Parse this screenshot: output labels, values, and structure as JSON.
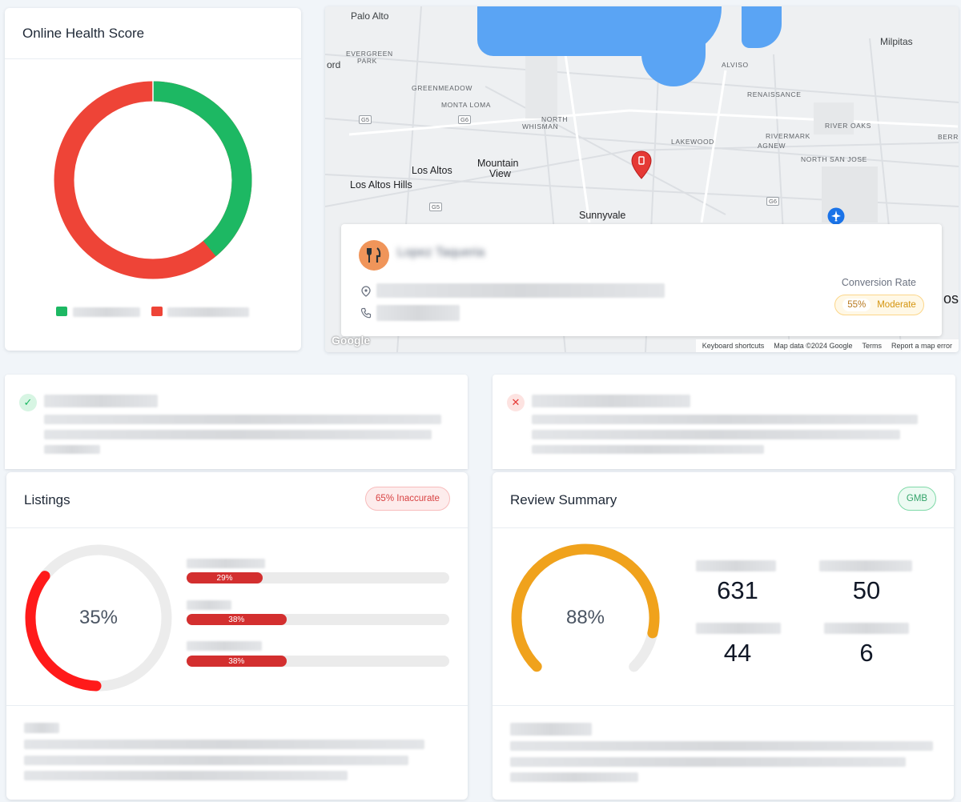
{
  "health_card": {
    "title": "Online Health Score",
    "donut": {
      "positive_fraction": 0.39,
      "positive_color": "#1db863",
      "negative_color": "#ee4437"
    }
  },
  "map": {
    "labels": {
      "palo_alto": "Palo Alto",
      "milpitas": "Milpitas",
      "ord": "ord",
      "evergreen": "EVERGREEN",
      "park": "PARK",
      "alviso": "ALVISO",
      "greenmeadow": "GREENMEADOW",
      "renaissance": "RENAISSANCE",
      "monta_loma": "MONTA LOMA",
      "north": "NORTH",
      "whisman": "WHISMAN",
      "river_oaks": "RIVER OAKS",
      "rivermark": "RIVERMARK",
      "agnew": "AGNEW",
      "berry": "BERRY",
      "lakewood": "LAKEWOOD",
      "mountain": "Mountain",
      "view": "View",
      "los_altos": "Los Altos",
      "north_san_jose": "NORTH SAN JOSE",
      "los_altos_hills": "Los Altos Hills",
      "sunnyvale": "Sunnyvale",
      "os": "os"
    },
    "roads": {
      "g5": "G5",
      "g6": "G6"
    },
    "footer": {
      "shortcuts": "Keyboard shortcuts",
      "map_data": "Map data ©2024 Google",
      "terms": "Terms",
      "report": "Report a map error"
    },
    "google_logo": "Google",
    "business": {
      "name": "Lopez Taqueria",
      "conversion_label": "Conversion Rate",
      "conversion_pct": "55%",
      "conversion_status": "Moderate"
    }
  },
  "listings": {
    "title": "Listings",
    "badge": "65% Inaccurate",
    "ring_label": "35%",
    "ring_value": 0.35,
    "bars": [
      {
        "value": 0.29,
        "label": "29%"
      },
      {
        "value": 0.38,
        "label": "38%"
      },
      {
        "value": 0.38,
        "label": "38%"
      }
    ]
  },
  "reviews": {
    "title": "Review Summary",
    "badge": "GMB",
    "gauge_label": "88%",
    "gauge_value": 0.88,
    "stats": [
      "631",
      "50",
      "44",
      "6"
    ]
  },
  "colors": {
    "green": "#1db863",
    "red": "#ee4437",
    "listing_red": "#ff1a1a",
    "gauge_orange": "#f0a21c",
    "gmb_green": "#34c17b"
  }
}
